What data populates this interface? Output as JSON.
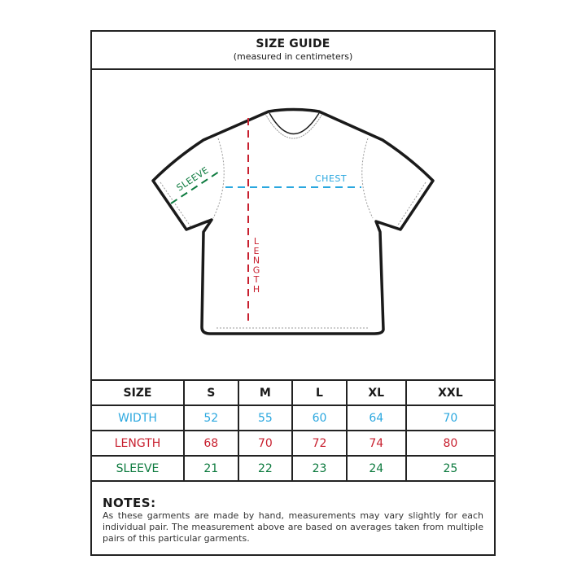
{
  "header": {
    "title": "SIZE GUIDE",
    "subtitle": "(measured in centimeters)"
  },
  "figure": {
    "labels": {
      "sleeve": "SLEEVE",
      "chest": "CHEST",
      "length": "LENGTH"
    },
    "icon": "t-shirt-outline"
  },
  "colors": {
    "width": "#2aa7df",
    "length": "#c8202f",
    "sleeve": "#0c7a3e",
    "border": "#222222"
  },
  "table": {
    "header": [
      "SIZE",
      "S",
      "M",
      "L",
      "XL",
      "XXL"
    ],
    "rows": [
      {
        "label": "WIDTH",
        "values": [
          "52",
          "55",
          "60",
          "64",
          "70"
        ]
      },
      {
        "label": "LENGTH",
        "values": [
          "68",
          "70",
          "72",
          "74",
          "80"
        ]
      },
      {
        "label": "SLEEVE",
        "values": [
          "21",
          "22",
          "23",
          "24",
          "25"
        ]
      }
    ]
  },
  "notes": {
    "title": "NOTES:",
    "text": "As these garments are made by hand, measurements may vary slightly for each individual pair. The measurement above are based on averages taken from multiple pairs of this particular garments."
  }
}
